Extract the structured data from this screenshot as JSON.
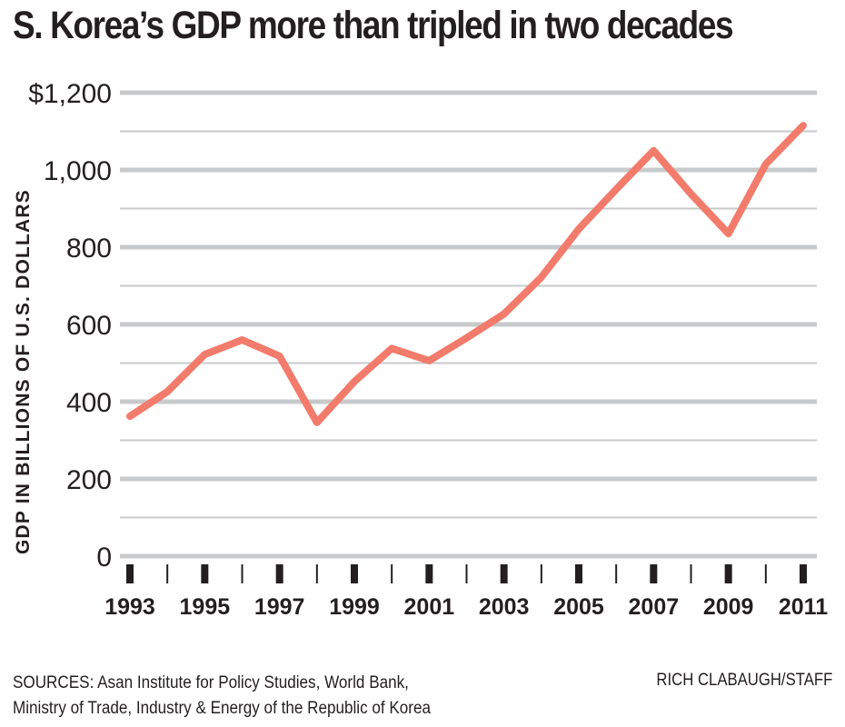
{
  "chart_data": {
    "type": "line",
    "title": "S. Korea’s GDP more than tripled in two decades",
    "xlabel": "",
    "ylabel": "GDP IN BILLIONS OF U.S. DOLLARS",
    "x": [
      1993,
      1994,
      1995,
      1996,
      1997,
      1998,
      1999,
      2000,
      2001,
      2002,
      2003,
      2004,
      2005,
      2006,
      2007,
      2008,
      2009,
      2010,
      2011
    ],
    "series": [
      {
        "name": "GDP",
        "color": "#f37b6b",
        "values": [
          362,
          426,
          522,
          560,
          518,
          346,
          452,
          538,
          506,
          565,
          627,
          722,
          847,
          950,
          1050,
          938,
          835,
          1015,
          1115
        ]
      }
    ],
    "xlim": [
      1993,
      2011
    ],
    "ylim": [
      0,
      1200
    ],
    "y_ticks": [
      0,
      200,
      400,
      600,
      800,
      1000,
      1200
    ],
    "y_tick_labels": [
      "0",
      "200",
      "400",
      "600",
      "800",
      "1,000",
      "$1,200"
    ],
    "y_minor_gridlines": [
      100,
      300,
      500,
      700,
      900,
      1100
    ],
    "x_tick_labels": [
      "1993",
      "1995",
      "1997",
      "1999",
      "2001",
      "2003",
      "2005",
      "2007",
      "2009",
      "2011"
    ],
    "x_labeled_years": [
      1993,
      1995,
      1997,
      1999,
      2001,
      2003,
      2005,
      2007,
      2009,
      2011
    ],
    "grid": true,
    "legend": "none",
    "grid_color": "#c8c9cb",
    "text_color": "#231f20"
  },
  "footer": {
    "sources_line1": "SOURCES: Asan Institute for Policy Studies, World Bank,",
    "sources_line2": "Ministry of Trade, Industry & Energy of the Republic of Korea",
    "credit": "RICH CLABAUGH/STAFF"
  }
}
